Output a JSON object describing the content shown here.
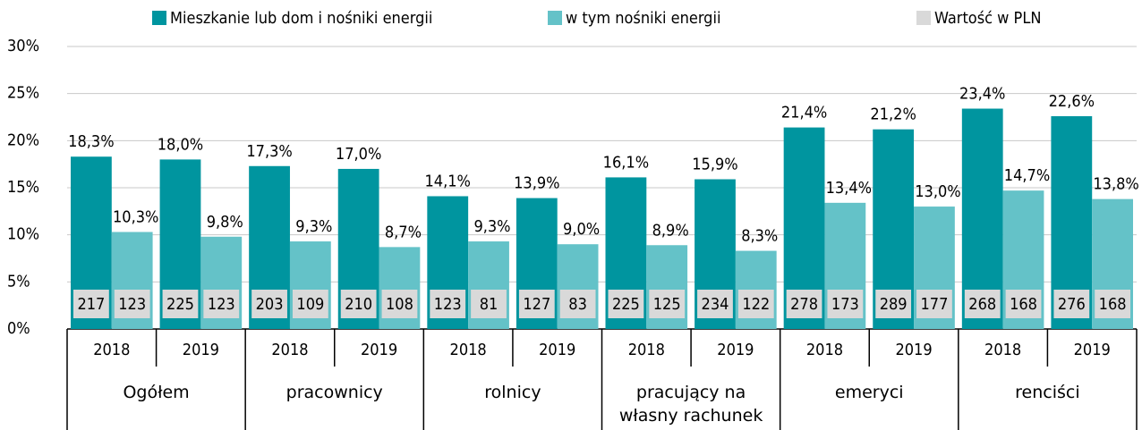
{
  "chart_data": {
    "type": "bar",
    "categories": [
      "2018",
      "2019",
      "2018",
      "2019",
      "2018",
      "2019",
      "2018",
      "2019",
      "2018",
      "2019",
      "2018",
      "2019"
    ],
    "groups": [
      "Ogółem",
      "pracownicy",
      "rolnicy",
      "pracujący na własny rachunek",
      "emeryci",
      "renciści"
    ],
    "series": [
      {
        "name": "Mieszkanie lub dom i nośniki energii",
        "color": "#00959f",
        "values": [
          18.3,
          18.0,
          17.3,
          17.0,
          14.1,
          13.9,
          16.1,
          15.9,
          21.4,
          21.2,
          23.4,
          22.6
        ],
        "value_labels": [
          "18,3%",
          "18,0%",
          "17,3%",
          "17,0%",
          "14,1%",
          "13,9%",
          "16,1%",
          "15,9%",
          "21,4%",
          "21,2%",
          "23,4%",
          "22,6%"
        ],
        "pln": [
          217,
          225,
          203,
          210,
          123,
          127,
          225,
          234,
          278,
          289,
          268,
          276
        ]
      },
      {
        "name": "w tym nośniki energii",
        "color": "#64c2c8",
        "values": [
          10.3,
          9.8,
          9.3,
          8.7,
          9.3,
          9.0,
          8.9,
          8.3,
          13.4,
          13.0,
          14.7,
          13.8
        ],
        "value_labels": [
          "10,3%",
          "9,8%",
          "9,3%",
          "8,7%",
          "9,3%",
          "9,0%",
          "8,9%",
          "8,3%",
          "13,4%",
          "13,0%",
          "14,7%",
          "13,8%"
        ],
        "pln": [
          123,
          123,
          109,
          108,
          81,
          83,
          125,
          122,
          173,
          177,
          168,
          168
        ]
      }
    ],
    "pln_legend": {
      "name": "Wartość w PLN",
      "color": "#d9d9d9"
    },
    "ylim": [
      0,
      30
    ],
    "yticks": [
      {
        "value": 0,
        "label": "0%"
      },
      {
        "value": 5,
        "label": "5%"
      },
      {
        "value": 10,
        "label": "10%"
      },
      {
        "value": 15,
        "label": "15%"
      },
      {
        "value": 20,
        "label": "20%"
      },
      {
        "value": 25,
        "label": "25%"
      },
      {
        "value": 30,
        "label": "30%"
      }
    ],
    "grid": true
  }
}
